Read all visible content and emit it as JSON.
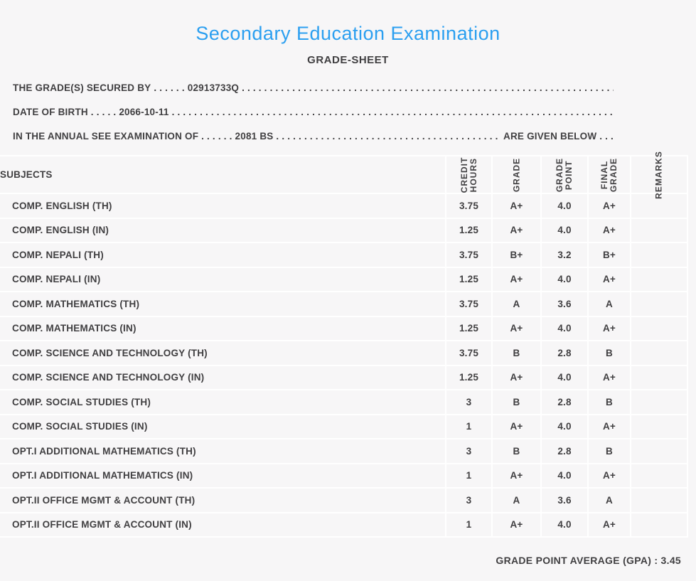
{
  "colors": {
    "background": "#f7f6f7",
    "grid_line": "#ffffff",
    "text": "#403f41",
    "title_accent": "#2b9ff0"
  },
  "header": {
    "title": "Secondary Education Examination",
    "subtitle": "GRADE-SHEET"
  },
  "info_lines": [
    {
      "label": "THE GRADE(S) SECURED BY",
      "lead_dots": " . . . . . . ",
      "value": "02913733Q",
      "fill_dots": " . . . . . . . . . . . . . . . . . . . . . . . . . . . . . . . . . . . . . . . . . . . . . . . . . . . . . . . . . . . . . . . . . . . . . . . . . . . . . . . . . . . . . . . .",
      "suffix": "",
      "end_dots": ""
    },
    {
      "label": "DATE OF BIRTH",
      "lead_dots": " . . . . . ",
      "value": "2066-10-11",
      "fill_dots": " . . . . . . . . . . . . . . . . . . . . . . . . . . . . . . . . . . . . . . . . . . . . . . . . . . . . . . . . . . . . . . . . . . . . . . . . . . . . . . . . . . . . . . . .",
      "suffix": "",
      "end_dots": ""
    },
    {
      "label": "IN THE ANNUAL SEE EXAMINATION OF",
      "lead_dots": " . . . . . . ",
      "value": "2081 BS",
      "fill_dots": " . . . . . . . . . . . . . . . . . . . . . . . . . . . . . . . . . . . . . . . . . . . . . . . . . . . . . . . . . . . . . . . . . . . . . . . . . . . . . . . . . . . . . . . .",
      "suffix": " ARE GIVEN BELOW",
      "end_dots": " . . ."
    }
  ],
  "table": {
    "headers": {
      "subjects": "SUBJECTS",
      "credit_hours": "CREDIT\nHOURS",
      "grade": "GRADE",
      "grade_point": "GRADE\nPOINT",
      "final_grade": "FINAL\nGRADE",
      "remarks": "REMARKS"
    },
    "rows": [
      {
        "subject": "COMP. ENGLISH (TH)",
        "credit_hours": "3.75",
        "grade": "A+",
        "grade_point": "4.0",
        "final_grade": "A+",
        "remarks": ""
      },
      {
        "subject": "COMP. ENGLISH (IN)",
        "credit_hours": "1.25",
        "grade": "A+",
        "grade_point": "4.0",
        "final_grade": "A+",
        "remarks": ""
      },
      {
        "subject": "COMP. NEPALI (TH)",
        "credit_hours": "3.75",
        "grade": "B+",
        "grade_point": "3.2",
        "final_grade": "B+",
        "remarks": ""
      },
      {
        "subject": "COMP. NEPALI (IN)",
        "credit_hours": "1.25",
        "grade": "A+",
        "grade_point": "4.0",
        "final_grade": "A+",
        "remarks": ""
      },
      {
        "subject": "COMP. MATHEMATICS (TH)",
        "credit_hours": "3.75",
        "grade": "A",
        "grade_point": "3.6",
        "final_grade": "A",
        "remarks": ""
      },
      {
        "subject": "COMP. MATHEMATICS (IN)",
        "credit_hours": "1.25",
        "grade": "A+",
        "grade_point": "4.0",
        "final_grade": "A+",
        "remarks": ""
      },
      {
        "subject": "COMP. SCIENCE AND TECHNOLOGY (TH)",
        "credit_hours": "3.75",
        "grade": "B",
        "grade_point": "2.8",
        "final_grade": "B",
        "remarks": ""
      },
      {
        "subject": "COMP. SCIENCE AND TECHNOLOGY (IN)",
        "credit_hours": "1.25",
        "grade": "A+",
        "grade_point": "4.0",
        "final_grade": "A+",
        "remarks": ""
      },
      {
        "subject": "COMP. SOCIAL STUDIES (TH)",
        "credit_hours": "3",
        "grade": "B",
        "grade_point": "2.8",
        "final_grade": "B",
        "remarks": ""
      },
      {
        "subject": "COMP. SOCIAL STUDIES (IN)",
        "credit_hours": "1",
        "grade": "A+",
        "grade_point": "4.0",
        "final_grade": "A+",
        "remarks": ""
      },
      {
        "subject": "OPT.I ADDITIONAL MATHEMATICS (TH)",
        "credit_hours": "3",
        "grade": "B",
        "grade_point": "2.8",
        "final_grade": "B",
        "remarks": ""
      },
      {
        "subject": "OPT.I ADDITIONAL MATHEMATICS (IN)",
        "credit_hours": "1",
        "grade": "A+",
        "grade_point": "4.0",
        "final_grade": "A+",
        "remarks": ""
      },
      {
        "subject": "OPT.II OFFICE MGMT & ACCOUNT (TH)",
        "credit_hours": "3",
        "grade": "A",
        "grade_point": "3.6",
        "final_grade": "A",
        "remarks": ""
      },
      {
        "subject": "OPT.II OFFICE MGMT & ACCOUNT (IN)",
        "credit_hours": "1",
        "grade": "A+",
        "grade_point": "4.0",
        "final_grade": "A+",
        "remarks": ""
      }
    ]
  },
  "footer": {
    "gpa_label": "GRADE POINT AVERAGE (GPA) :",
    "gpa_value": " 3.45"
  }
}
